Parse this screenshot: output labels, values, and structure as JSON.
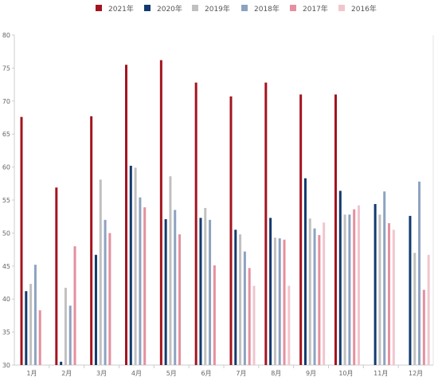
{
  "chart_data": {
    "type": "bar",
    "categories": [
      "1月",
      "2月",
      "3月",
      "4月",
      "5月",
      "6月",
      "7月",
      "8月",
      "9月",
      "10月",
      "11月",
      "12月"
    ],
    "series": [
      {
        "name": "2021年",
        "color": "#a3141e",
        "values": [
          67.6,
          56.9,
          67.7,
          75.5,
          76.2,
          72.8,
          70.7,
          72.8,
          71.0,
          71.0,
          null,
          null
        ]
      },
      {
        "name": "2020年",
        "color": "#123a6e",
        "values": [
          41.2,
          30.5,
          46.7,
          60.2,
          52.1,
          52.3,
          50.5,
          52.3,
          58.3,
          56.4,
          54.4,
          52.6
        ]
      },
      {
        "name": "2019年",
        "color": "#c0c0c0",
        "values": [
          42.3,
          41.7,
          58.1,
          59.9,
          58.6,
          53.8,
          49.8,
          49.3,
          52.2,
          52.8,
          52.8,
          47.0
        ]
      },
      {
        "name": "2018年",
        "color": "#8da2c0",
        "values": [
          45.2,
          39.0,
          52.0,
          55.4,
          53.5,
          52.0,
          47.2,
          49.2,
          50.7,
          52.8,
          56.3,
          57.8
        ]
      },
      {
        "name": "2017年",
        "color": "#e5909e",
        "values": [
          38.3,
          48.0,
          50.0,
          53.9,
          49.8,
          45.1,
          44.7,
          49.0,
          49.7,
          53.6,
          51.5,
          41.4
        ]
      },
      {
        "name": "2016年",
        "color": "#f2c5cd",
        "values": [
          null,
          null,
          null,
          null,
          null,
          null,
          42.0,
          42.0,
          51.6,
          54.2,
          50.5,
          46.7
        ]
      }
    ],
    "ylim": [
      30,
      80
    ],
    "yticks": [
      30,
      35,
      40,
      45,
      50,
      55,
      60,
      65,
      70,
      75,
      80
    ],
    "legend_position": "top",
    "grid": false
  }
}
